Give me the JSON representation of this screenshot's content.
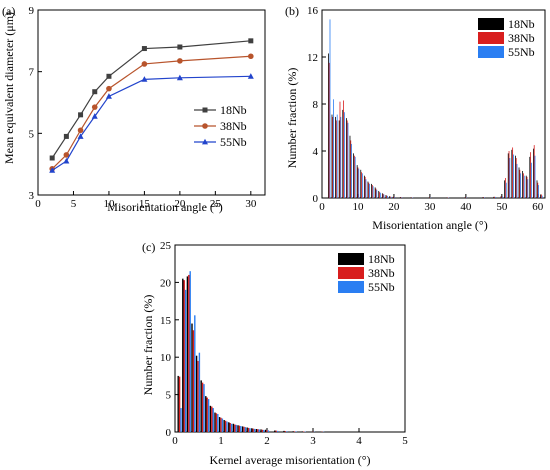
{
  "figure": {
    "colors": {
      "s18Nb": "#000000",
      "s38Nb": "#d81e1e",
      "s55Nb": "#2a7ef2",
      "line18Nb": "#404040",
      "line38Nb": "#b8542c",
      "line55Nb": "#2244cc"
    }
  },
  "chart_data": [
    {
      "panel_label": "(a)",
      "type": "line",
      "xlabel": "Misorientation angle (°)",
      "ylabel": "Mean equivalent diameter (μm)",
      "xlim": [
        0,
        32
      ],
      "ylim": [
        3,
        9
      ],
      "xticks": [
        "0",
        "5",
        "10",
        "15",
        "20",
        "25",
        "30"
      ],
      "yticks": [
        "3",
        "5",
        "7",
        "9"
      ],
      "legend": "right",
      "x": [
        2,
        4,
        6,
        8,
        10,
        15,
        20,
        30
      ],
      "series": [
        {
          "name": "18Nb",
          "marker": "square",
          "values": [
            4.2,
            4.9,
            5.6,
            6.35,
            6.85,
            7.75,
            7.8,
            8.0
          ]
        },
        {
          "name": "38Nb",
          "marker": "circle",
          "values": [
            3.85,
            4.3,
            5.1,
            5.85,
            6.45,
            7.25,
            7.35,
            7.5
          ]
        },
        {
          "name": "55Nb",
          "marker": "triangle",
          "values": [
            3.8,
            4.1,
            4.9,
            5.55,
            6.2,
            6.75,
            6.8,
            6.85
          ]
        }
      ]
    },
    {
      "panel_label": "(b)",
      "type": "bar",
      "xlabel": "Misorientation angle (°)",
      "ylabel": "Number fraction (%)",
      "xlim": [
        0,
        62
      ],
      "ylim": [
        0,
        16
      ],
      "xticks": [
        "0",
        "10",
        "20",
        "30",
        "40",
        "50",
        "60"
      ],
      "yticks": [
        "0",
        "4",
        "8",
        "12",
        "16"
      ],
      "legend": "top-right",
      "x": [
        2,
        3,
        4,
        5,
        6,
        7,
        8,
        9,
        10,
        11,
        12,
        13,
        14,
        15,
        16,
        17,
        18,
        19,
        20,
        22,
        25,
        30,
        35,
        40,
        45,
        48,
        50,
        51,
        52,
        53,
        54,
        55,
        56,
        57,
        58,
        59,
        60,
        61
      ],
      "series": [
        {
          "name": "18Nb",
          "values": [
            12.3,
            7.1,
            6.9,
            6.6,
            7.5,
            6.8,
            5.3,
            3.8,
            2.8,
            2.4,
            1.9,
            1.4,
            1.2,
            0.9,
            0.6,
            0.4,
            0.25,
            0.15,
            0.1,
            0.08,
            0.06,
            0.05,
            0.05,
            0.06,
            0.08,
            0.1,
            0.15,
            1.5,
            3.8,
            4.1,
            3.6,
            2.6,
            2.3,
            1.9,
            3.5,
            4.2,
            1.5,
            0.3
          ]
        },
        {
          "name": "38Nb",
          "values": [
            11.5,
            6.9,
            6.6,
            8.2,
            8.3,
            6.6,
            4.9,
            3.6,
            2.6,
            2.2,
            1.8,
            1.3,
            1.1,
            0.8,
            0.5,
            0.35,
            0.2,
            0.12,
            0.1,
            0.07,
            0.05,
            0.05,
            0.05,
            0.06,
            0.07,
            0.1,
            0.15,
            1.7,
            4.0,
            4.3,
            3.4,
            2.4,
            2.1,
            1.8,
            3.9,
            4.5,
            1.3,
            0.3
          ]
        },
        {
          "name": "55Nb",
          "values": [
            15.2,
            8.4,
            7.1,
            6.9,
            7.3,
            6.4,
            4.6,
            3.5,
            2.5,
            2.1,
            1.6,
            1.2,
            1.0,
            0.7,
            0.45,
            0.3,
            0.18,
            0.1,
            0.08,
            0.06,
            0.05,
            0.04,
            0.04,
            0.05,
            0.06,
            0.09,
            0.12,
            1.3,
            3.4,
            3.7,
            2.9,
            2.1,
            1.9,
            1.6,
            3.0,
            3.6,
            1.1,
            0.2
          ]
        }
      ]
    },
    {
      "panel_label": "(c)",
      "type": "bar",
      "xlabel": "Kernel average misorientation (°)",
      "ylabel": "Number fraction (%)",
      "xlim": [
        0,
        5
      ],
      "ylim": [
        0,
        25
      ],
      "xticks": [
        "0",
        "1",
        "2",
        "3",
        "4",
        "5"
      ],
      "yticks": [
        "0",
        "5",
        "10",
        "15",
        "20",
        "25"
      ],
      "legend": "top-right",
      "x": [
        0.1,
        0.2,
        0.3,
        0.4,
        0.5,
        0.6,
        0.7,
        0.8,
        0.9,
        1.0,
        1.1,
        1.2,
        1.3,
        1.4,
        1.5,
        1.6,
        1.7,
        1.8,
        1.9,
        2.0,
        2.2,
        2.4,
        2.6,
        2.8,
        3.0,
        3.2
      ],
      "series": [
        {
          "name": "18Nb",
          "values": [
            7.5,
            20.5,
            20.8,
            14.5,
            10.2,
            6.9,
            4.8,
            3.5,
            2.6,
            2.0,
            1.6,
            1.3,
            1.1,
            0.9,
            0.75,
            0.6,
            0.5,
            0.4,
            0.35,
            0.3,
            0.2,
            0.15,
            0.1,
            0.08,
            0.05,
            0.03
          ]
        },
        {
          "name": "38Nb",
          "values": [
            7.4,
            20.3,
            21.0,
            13.6,
            9.5,
            6.6,
            4.6,
            3.4,
            2.5,
            1.9,
            1.5,
            1.2,
            1.0,
            0.85,
            0.7,
            0.55,
            0.45,
            0.38,
            0.3,
            0.25,
            0.18,
            0.12,
            0.09,
            0.07,
            0.04,
            0.03
          ]
        },
        {
          "name": "55Nb",
          "values": [
            3.2,
            19.0,
            21.5,
            15.6,
            10.6,
            6.4,
            4.4,
            3.2,
            2.4,
            1.8,
            1.4,
            1.1,
            0.95,
            0.8,
            0.65,
            0.5,
            0.42,
            0.35,
            0.28,
            0.22,
            0.15,
            0.1,
            0.08,
            0.06,
            0.03,
            0.02
          ]
        }
      ]
    }
  ]
}
